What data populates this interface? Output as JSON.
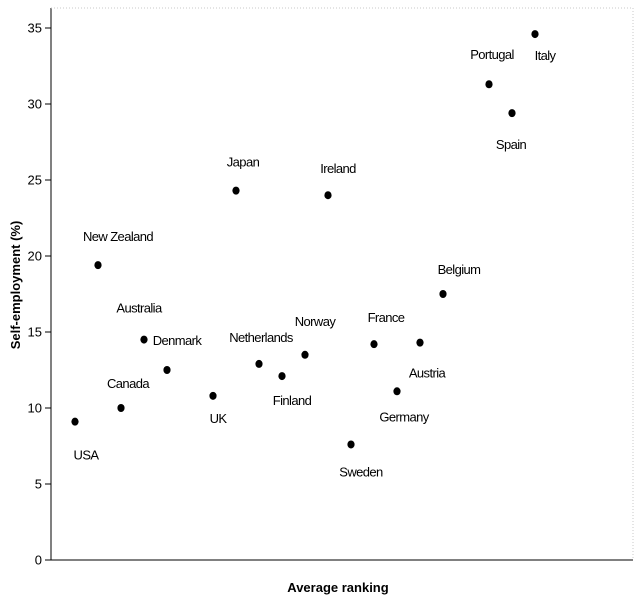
{
  "chart_data": {
    "type": "scatter",
    "title": "",
    "xlabel": "Average ranking",
    "ylabel": "Self-employment (%)",
    "ylim": [
      0,
      35
    ],
    "yticks": [
      0,
      5,
      10,
      15,
      20,
      25,
      30,
      35
    ],
    "xlim": [
      0,
      24
    ],
    "grid": false,
    "points": [
      {
        "label": "USA",
        "x": 1,
        "y": 9.1
      },
      {
        "label": "New Zealand",
        "x": 2,
        "y": 19.4
      },
      {
        "label": "Canada",
        "x": 3,
        "y": 10.0
      },
      {
        "label": "Australia",
        "x": 4,
        "y": 14.5
      },
      {
        "label": "Denmark",
        "x": 5,
        "y": 12.5
      },
      {
        "label": "UK",
        "x": 7,
        "y": 10.8
      },
      {
        "label": "Japan",
        "x": 8,
        "y": 24.3
      },
      {
        "label": "Netherlands",
        "x": 9,
        "y": 12.9
      },
      {
        "label": "Finland",
        "x": 10,
        "y": 12.1
      },
      {
        "label": "Norway",
        "x": 11,
        "y": 13.5
      },
      {
        "label": "Ireland",
        "x": 12,
        "y": 24.0
      },
      {
        "label": "Sweden",
        "x": 13,
        "y": 7.6
      },
      {
        "label": "France",
        "x": 14,
        "y": 14.2
      },
      {
        "label": "Germany",
        "x": 15,
        "y": 11.1
      },
      {
        "label": "Austria",
        "x": 16,
        "y": 14.3
      },
      {
        "label": "Belgium",
        "x": 17,
        "y": 17.5
      },
      {
        "label": "Portugal",
        "x": 19,
        "y": 31.3
      },
      {
        "label": "Spain",
        "x": 20,
        "y": 29.4
      },
      {
        "label": "Italy",
        "x": 21,
        "y": 34.6
      }
    ]
  }
}
